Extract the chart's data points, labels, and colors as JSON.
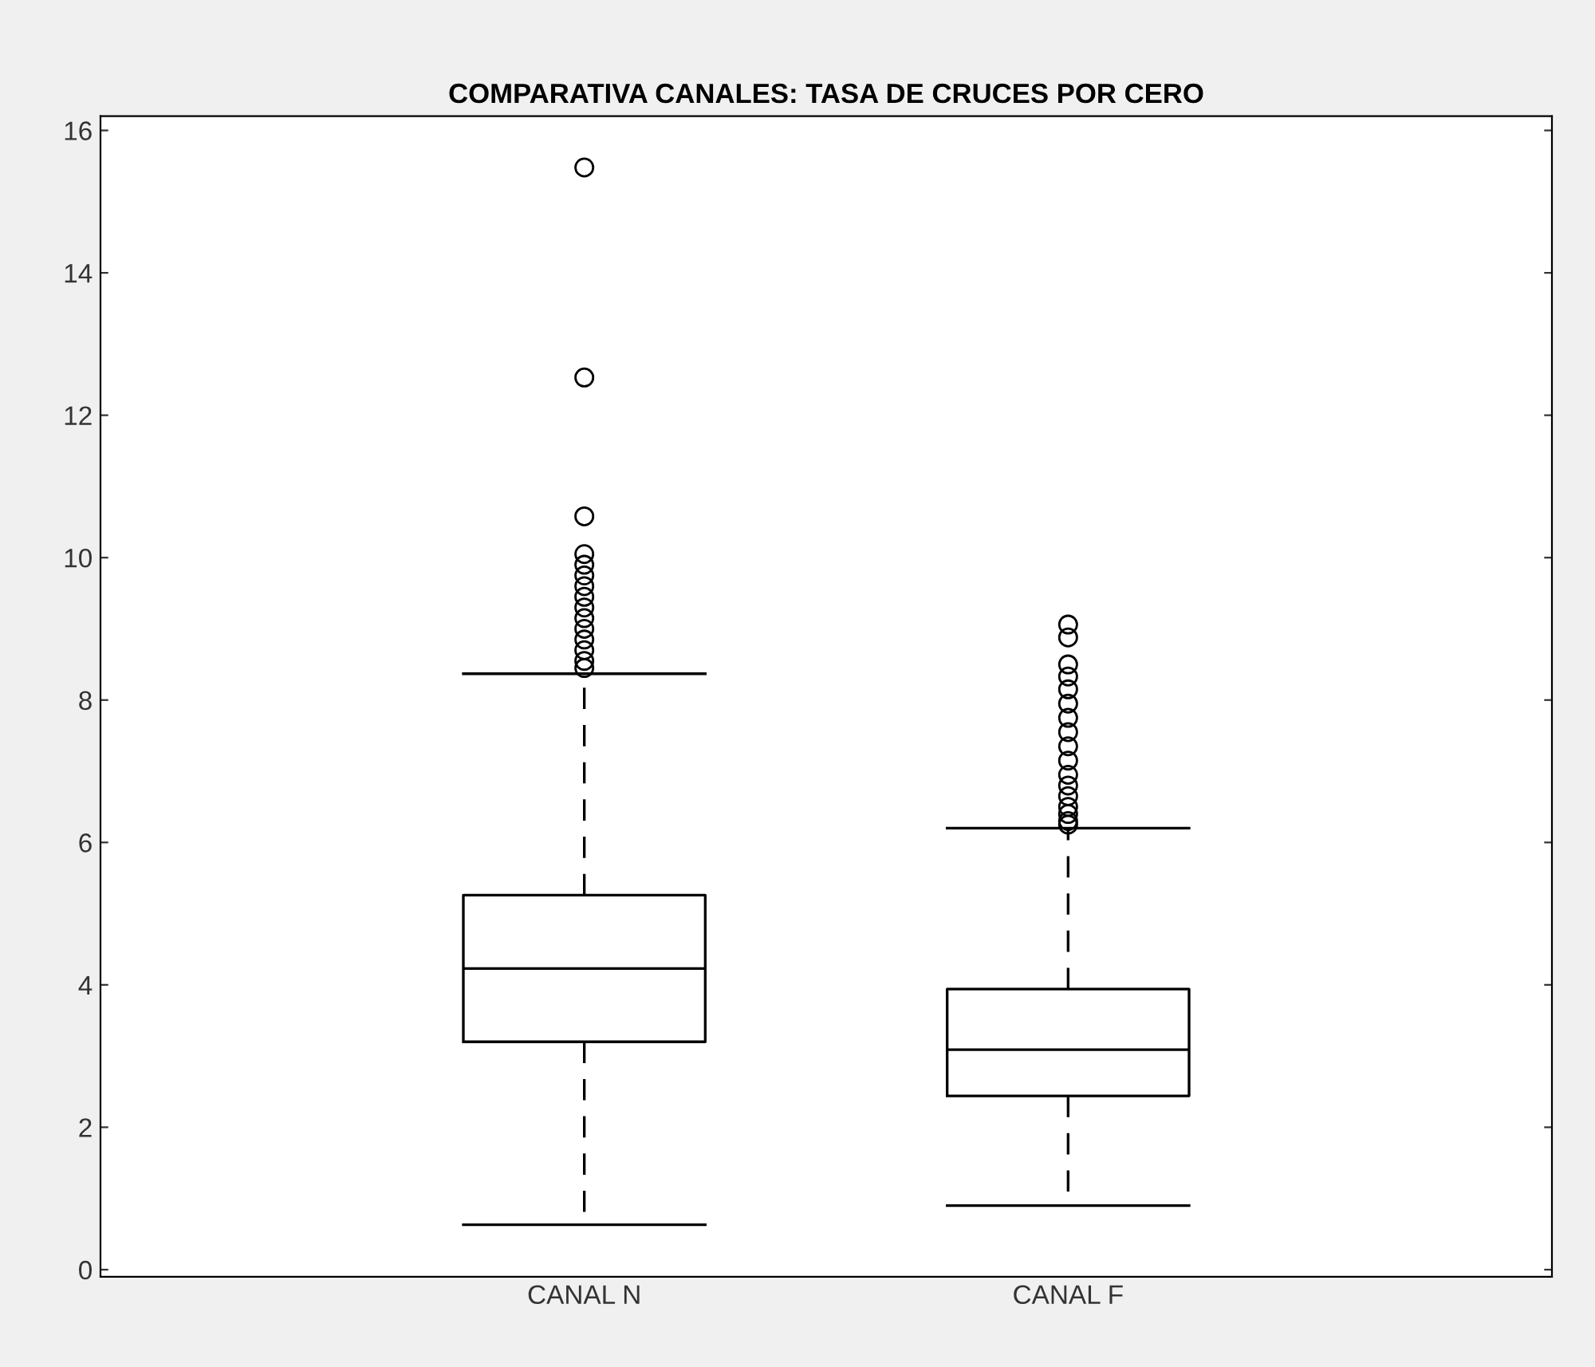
{
  "chart_data": {
    "type": "box",
    "title": "COMPARATIVA CANALES: TASA DE CRUCES POR CERO",
    "categories": [
      "CANAL N",
      "CANAL F"
    ],
    "boxes": [
      {
        "low": 0.63,
        "q1": 3.2,
        "median": 4.23,
        "q3": 5.26,
        "high": 8.37,
        "outliers": [
          15.48,
          12.53,
          10.58,
          10.05,
          9.9,
          9.75,
          9.6,
          9.45,
          9.3,
          9.15,
          9.0,
          8.85,
          8.7,
          8.55,
          8.45
        ]
      },
      {
        "low": 0.9,
        "q1": 2.44,
        "median": 3.09,
        "q3": 3.94,
        "high": 6.2,
        "outliers": [
          9.06,
          8.88,
          8.5,
          8.33,
          8.15,
          7.95,
          7.75,
          7.55,
          7.35,
          7.15,
          6.95,
          6.8,
          6.65,
          6.5,
          6.4,
          6.3,
          6.25
        ]
      }
    ],
    "color": "#000000",
    "line_style": "dashed",
    "marker": "circle",
    "ylim": [
      -0.1,
      16.2
    ],
    "yticks": [
      0,
      2,
      4,
      6,
      8,
      10,
      12,
      14,
      16
    ],
    "grid": false
  }
}
